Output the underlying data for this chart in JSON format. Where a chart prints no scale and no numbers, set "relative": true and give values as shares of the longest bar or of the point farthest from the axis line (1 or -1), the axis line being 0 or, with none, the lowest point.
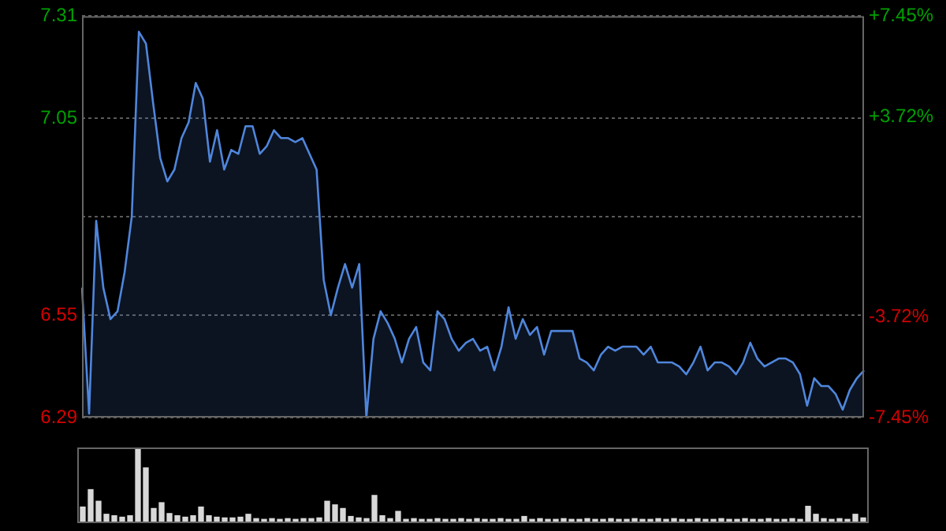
{
  "chart_data": [
    {
      "type": "area",
      "categories": [
        null,
        null,
        null,
        null,
        null,
        null,
        null,
        null,
        null,
        null,
        null,
        null,
        null,
        null,
        null,
        null,
        null,
        null,
        null,
        null,
        null,
        null,
        null,
        null,
        null,
        null,
        null,
        null,
        null,
        null,
        null,
        null,
        null,
        null,
        null,
        null,
        null,
        null,
        null,
        null,
        null,
        null,
        null,
        null,
        null,
        null,
        null,
        null,
        null,
        null,
        null,
        null,
        null,
        null,
        null,
        null,
        null,
        null,
        null,
        null,
        null,
        null,
        null,
        null,
        null,
        null,
        null,
        null,
        null,
        null,
        null,
        null,
        null,
        null,
        null,
        null,
        null,
        null,
        null,
        null,
        null,
        null,
        null,
        null,
        null,
        null,
        null,
        null,
        null,
        null,
        null,
        null,
        null,
        null,
        null,
        null,
        null,
        null,
        null,
        null,
        null,
        null,
        null,
        null,
        null,
        null,
        null,
        null,
        null,
        null,
        null
      ],
      "series": [
        {
          "color": "#4f86dc",
          "values": [
            6.62,
            6.3,
            6.79,
            6.62,
            6.54,
            6.56,
            6.66,
            6.8,
            7.27,
            7.24,
            7.09,
            6.95,
            6.89,
            6.92,
            7.0,
            7.04,
            7.14,
            7.1,
            6.94,
            7.02,
            6.92,
            6.97,
            6.96,
            7.03,
            7.03,
            6.96,
            6.98,
            7.02,
            7.0,
            7.0,
            6.99,
            7.0,
            6.96,
            6.92,
            6.64,
            6.55,
            6.62,
            6.68,
            6.62,
            6.68,
            6.29,
            6.49,
            6.56,
            6.53,
            6.49,
            6.43,
            6.49,
            6.52,
            6.43,
            6.41,
            6.56,
            6.54,
            6.49,
            6.46,
            6.48,
            6.49,
            6.46,
            6.47,
            6.41,
            6.47,
            6.57,
            6.49,
            6.54,
            6.5,
            6.52,
            6.45,
            6.51,
            6.51,
            6.51,
            6.51,
            6.44,
            6.43,
            6.41,
            6.45,
            6.47,
            6.46,
            6.47,
            6.47,
            6.47,
            6.45,
            6.47,
            6.43,
            6.43,
            6.43,
            6.42,
            6.4,
            6.43,
            6.47,
            6.41,
            6.43,
            6.43,
            6.42,
            6.4,
            6.43,
            6.48,
            6.44,
            6.42,
            6.43,
            6.44,
            6.44,
            6.43,
            6.4,
            6.32,
            6.39,
            6.37,
            6.37,
            6.35,
            6.31,
            6.36,
            6.39,
            6.41
          ]
        }
      ],
      "ylim": [
        6.29,
        7.31
      ],
      "yticks": [
        6.29,
        6.55,
        {
          "value": 6.8,
          "label": null
        },
        7.05,
        7.31
      ],
      "y2lim": [
        -7.45,
        7.45
      ],
      "y2ticks": [
        {
          "value": -7.45,
          "label": "-7.45%"
        },
        {
          "value": -3.72,
          "label": "-3.72%"
        },
        {
          "value": 0,
          "label": null
        },
        {
          "value": 3.72,
          "label": "+3.72%"
        },
        {
          "value": 7.45,
          "label": "+7.45%"
        }
      ],
      "tick_labels": "y",
      "grid": true
    },
    {
      "type": "bar",
      "relative": true,
      "tick_labels": false,
      "color": "#d8d8d8",
      "categories": [
        null,
        null,
        null,
        null,
        null,
        null,
        null,
        null,
        null,
        null,
        null,
        null,
        null,
        null,
        null,
        null,
        null,
        null,
        null,
        null,
        null,
        null,
        null,
        null,
        null,
        null,
        null,
        null,
        null,
        null,
        null,
        null,
        null,
        null,
        null,
        null,
        null,
        null,
        null,
        null,
        null,
        null,
        null,
        null,
        null,
        null,
        null,
        null,
        null,
        null,
        null,
        null,
        null,
        null,
        null,
        null,
        null,
        null,
        null,
        null,
        null,
        null,
        null,
        null,
        null,
        null,
        null,
        null,
        null,
        null,
        null,
        null,
        null,
        null,
        null,
        null,
        null,
        null,
        null,
        null,
        null,
        null,
        null,
        null,
        null,
        null,
        null,
        null,
        null,
        null,
        null,
        null,
        null,
        null,
        null,
        null,
        null,
        null,
        null,
        null
      ],
      "values": [
        0.2,
        0.44,
        0.28,
        0.1,
        0.08,
        0.06,
        0.08,
        1,
        0.74,
        0.18,
        0.26,
        0.11,
        0.08,
        0.06,
        0.08,
        0.2,
        0.08,
        0.06,
        0.05,
        0.05,
        0.06,
        0.1,
        0.04,
        0.03,
        0.04,
        0.03,
        0.04,
        0.03,
        0.04,
        0.04,
        0.05,
        0.28,
        0.23,
        0.18,
        0.07,
        0.05,
        0.04,
        0.36,
        0.08,
        0.04,
        0.14,
        0.03,
        0.04,
        0.03,
        0.03,
        0.04,
        0.03,
        0.03,
        0.04,
        0.03,
        0.04,
        0.03,
        0.03,
        0.04,
        0.03,
        0.03,
        0.07,
        0.03,
        0.04,
        0.03,
        0.03,
        0.04,
        0.03,
        0.03,
        0.04,
        0.03,
        0.03,
        0.04,
        0.03,
        0.03,
        0.04,
        0.03,
        0.03,
        0.04,
        0.03,
        0.04,
        0.03,
        0.03,
        0.04,
        0.03,
        0.03,
        0.04,
        0.03,
        0.03,
        0.04,
        0.03,
        0.03,
        0.04,
        0.03,
        0.03,
        0.04,
        0.03,
        0.21,
        0.1,
        0.04,
        0.03,
        0.04,
        0.03,
        0.1,
        0.05
      ]
    }
  ]
}
